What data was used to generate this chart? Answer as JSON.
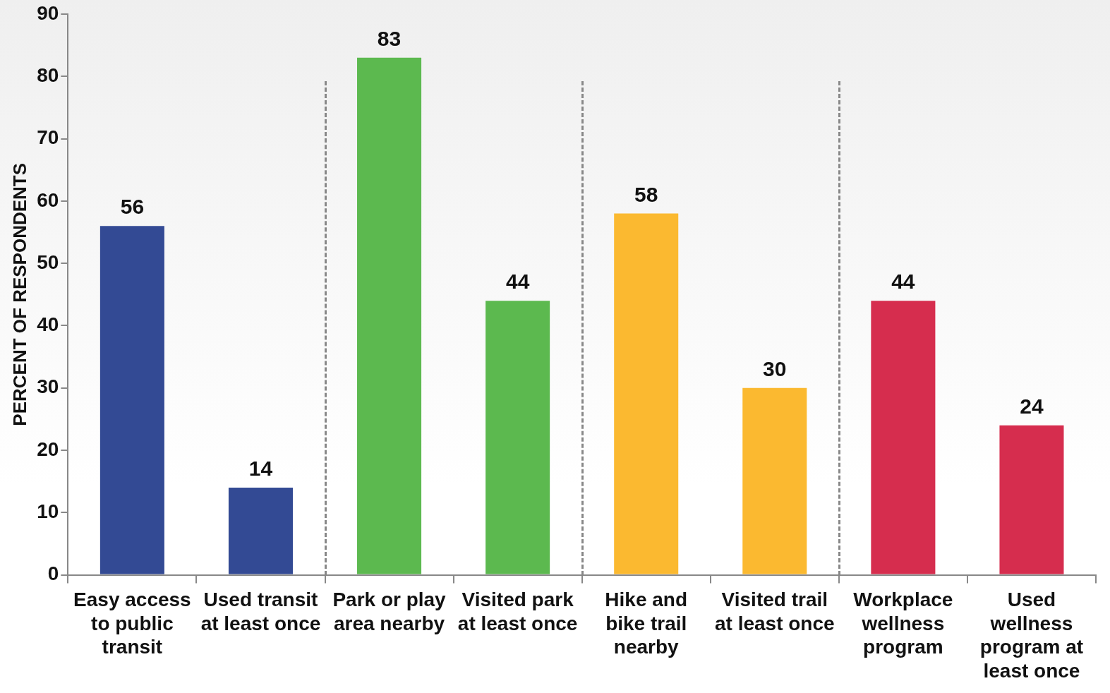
{
  "chart_data": {
    "type": "bar",
    "ylabel": "PERCENT OF RESPONDENTS",
    "categories": [
      "Easy access to public transit",
      "Used transit at least once",
      "Park or play area nearby",
      "Visited park at least once",
      "Hike and bike trail nearby",
      "Visited trail at least once",
      "Workplace wellness program",
      "Used wellness program at least once"
    ],
    "values": [
      56,
      14,
      83,
      44,
      58,
      30,
      44,
      24
    ],
    "colors": [
      "#334a94",
      "#334a94",
      "#5cb94f",
      "#5cb94f",
      "#fbb930",
      "#fbb930",
      "#d62d4e",
      "#d62d4e"
    ],
    "ylim": [
      0,
      90
    ],
    "yticks": [
      0,
      10,
      20,
      30,
      40,
      50,
      60,
      70,
      80,
      90
    ],
    "grid": false,
    "data_labels": true
  }
}
